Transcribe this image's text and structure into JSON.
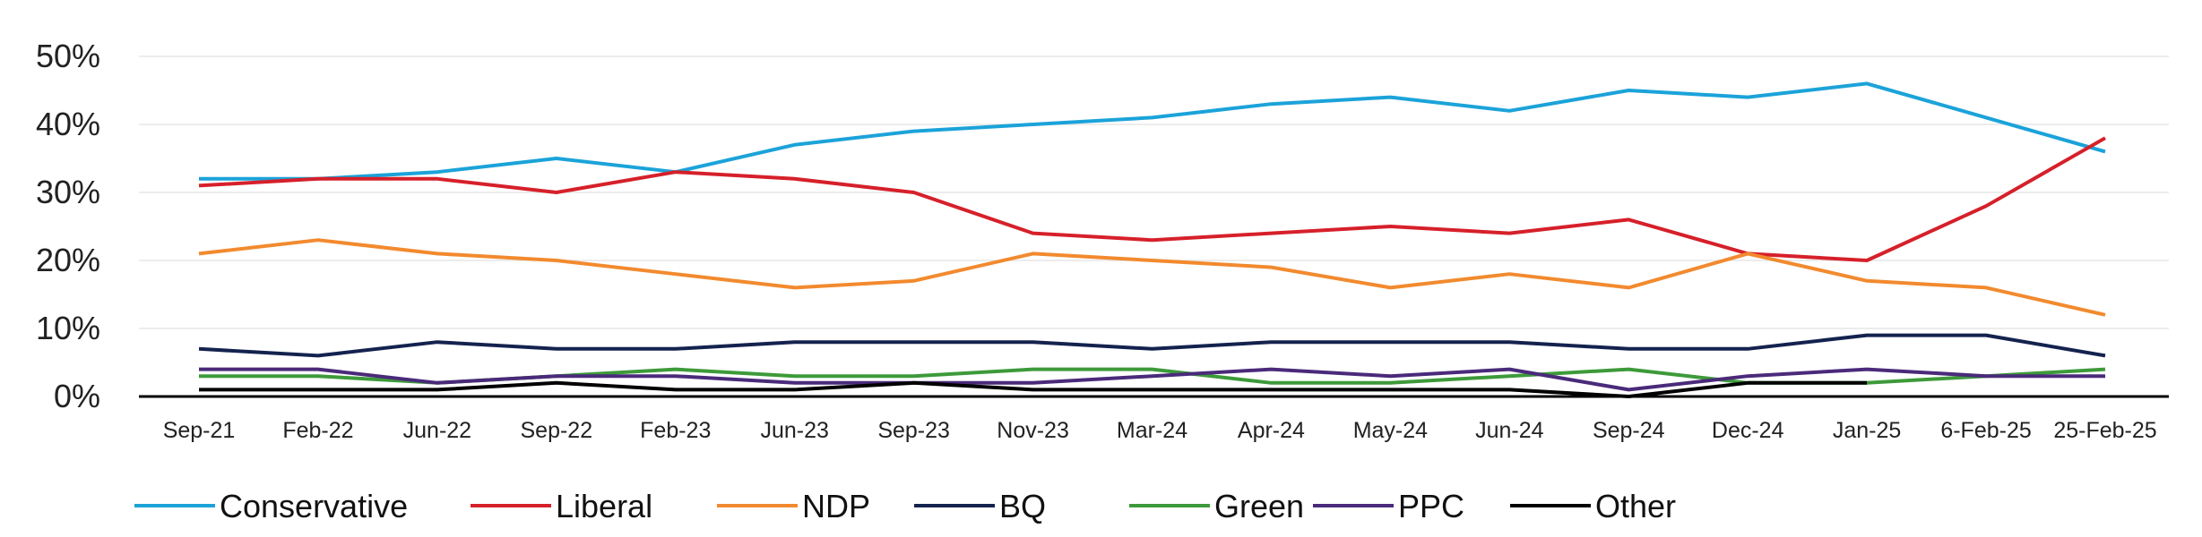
{
  "chart_data": {
    "type": "line",
    "categories": [
      "Sep-21",
      "Feb-22",
      "Jun-22",
      "Sep-22",
      "Feb-23",
      "Jun-23",
      "Sep-23",
      "Nov-23",
      "Mar-24",
      "Apr-24",
      "May-24",
      "Jun-24",
      "Sep-24",
      "Dec-24",
      "Jan-25",
      "6-Feb-25",
      "25-Feb-25"
    ],
    "y_ticks": [
      "0%",
      "10%",
      "20%",
      "30%",
      "40%",
      "50%"
    ],
    "ylim": [
      0,
      50
    ],
    "grid": true,
    "legend_position": "bottom",
    "series": [
      {
        "name": "Conservative",
        "color": "#1ba3d9",
        "values": [
          32,
          32,
          33,
          35,
          33,
          37,
          39,
          40,
          41,
          43,
          44,
          42,
          45,
          44,
          46,
          41,
          36
        ]
      },
      {
        "name": "Liberal",
        "color": "#d6202a",
        "values": [
          31,
          32,
          32,
          30,
          33,
          32,
          30,
          24,
          23,
          24,
          25,
          24,
          26,
          21,
          20,
          28,
          38
        ]
      },
      {
        "name": "NDP",
        "color": "#f28a2e",
        "values": [
          21,
          23,
          21,
          20,
          18,
          16,
          17,
          21,
          20,
          19,
          16,
          18,
          16,
          21,
          17,
          16,
          12
        ]
      },
      {
        "name": "BQ",
        "color": "#14224e",
        "values": [
          7,
          6,
          8,
          7,
          7,
          8,
          8,
          8,
          7,
          8,
          8,
          8,
          7,
          7,
          9,
          9,
          6
        ]
      },
      {
        "name": "Green",
        "color": "#3d9a3a",
        "values": [
          3,
          3,
          2,
          3,
          4,
          3,
          3,
          4,
          4,
          2,
          2,
          3,
          4,
          2,
          2,
          3,
          4
        ]
      },
      {
        "name": "PPC",
        "color": "#4a2a7a",
        "values": [
          4,
          4,
          2,
          3,
          3,
          2,
          2,
          2,
          3,
          4,
          3,
          4,
          1,
          3,
          4,
          3,
          3
        ]
      },
      {
        "name": "Other",
        "color": "#000000",
        "values": [
          1,
          1,
          1,
          2,
          1,
          1,
          2,
          1,
          1,
          1,
          1,
          1,
          0,
          2,
          2,
          null,
          null
        ]
      }
    ]
  }
}
